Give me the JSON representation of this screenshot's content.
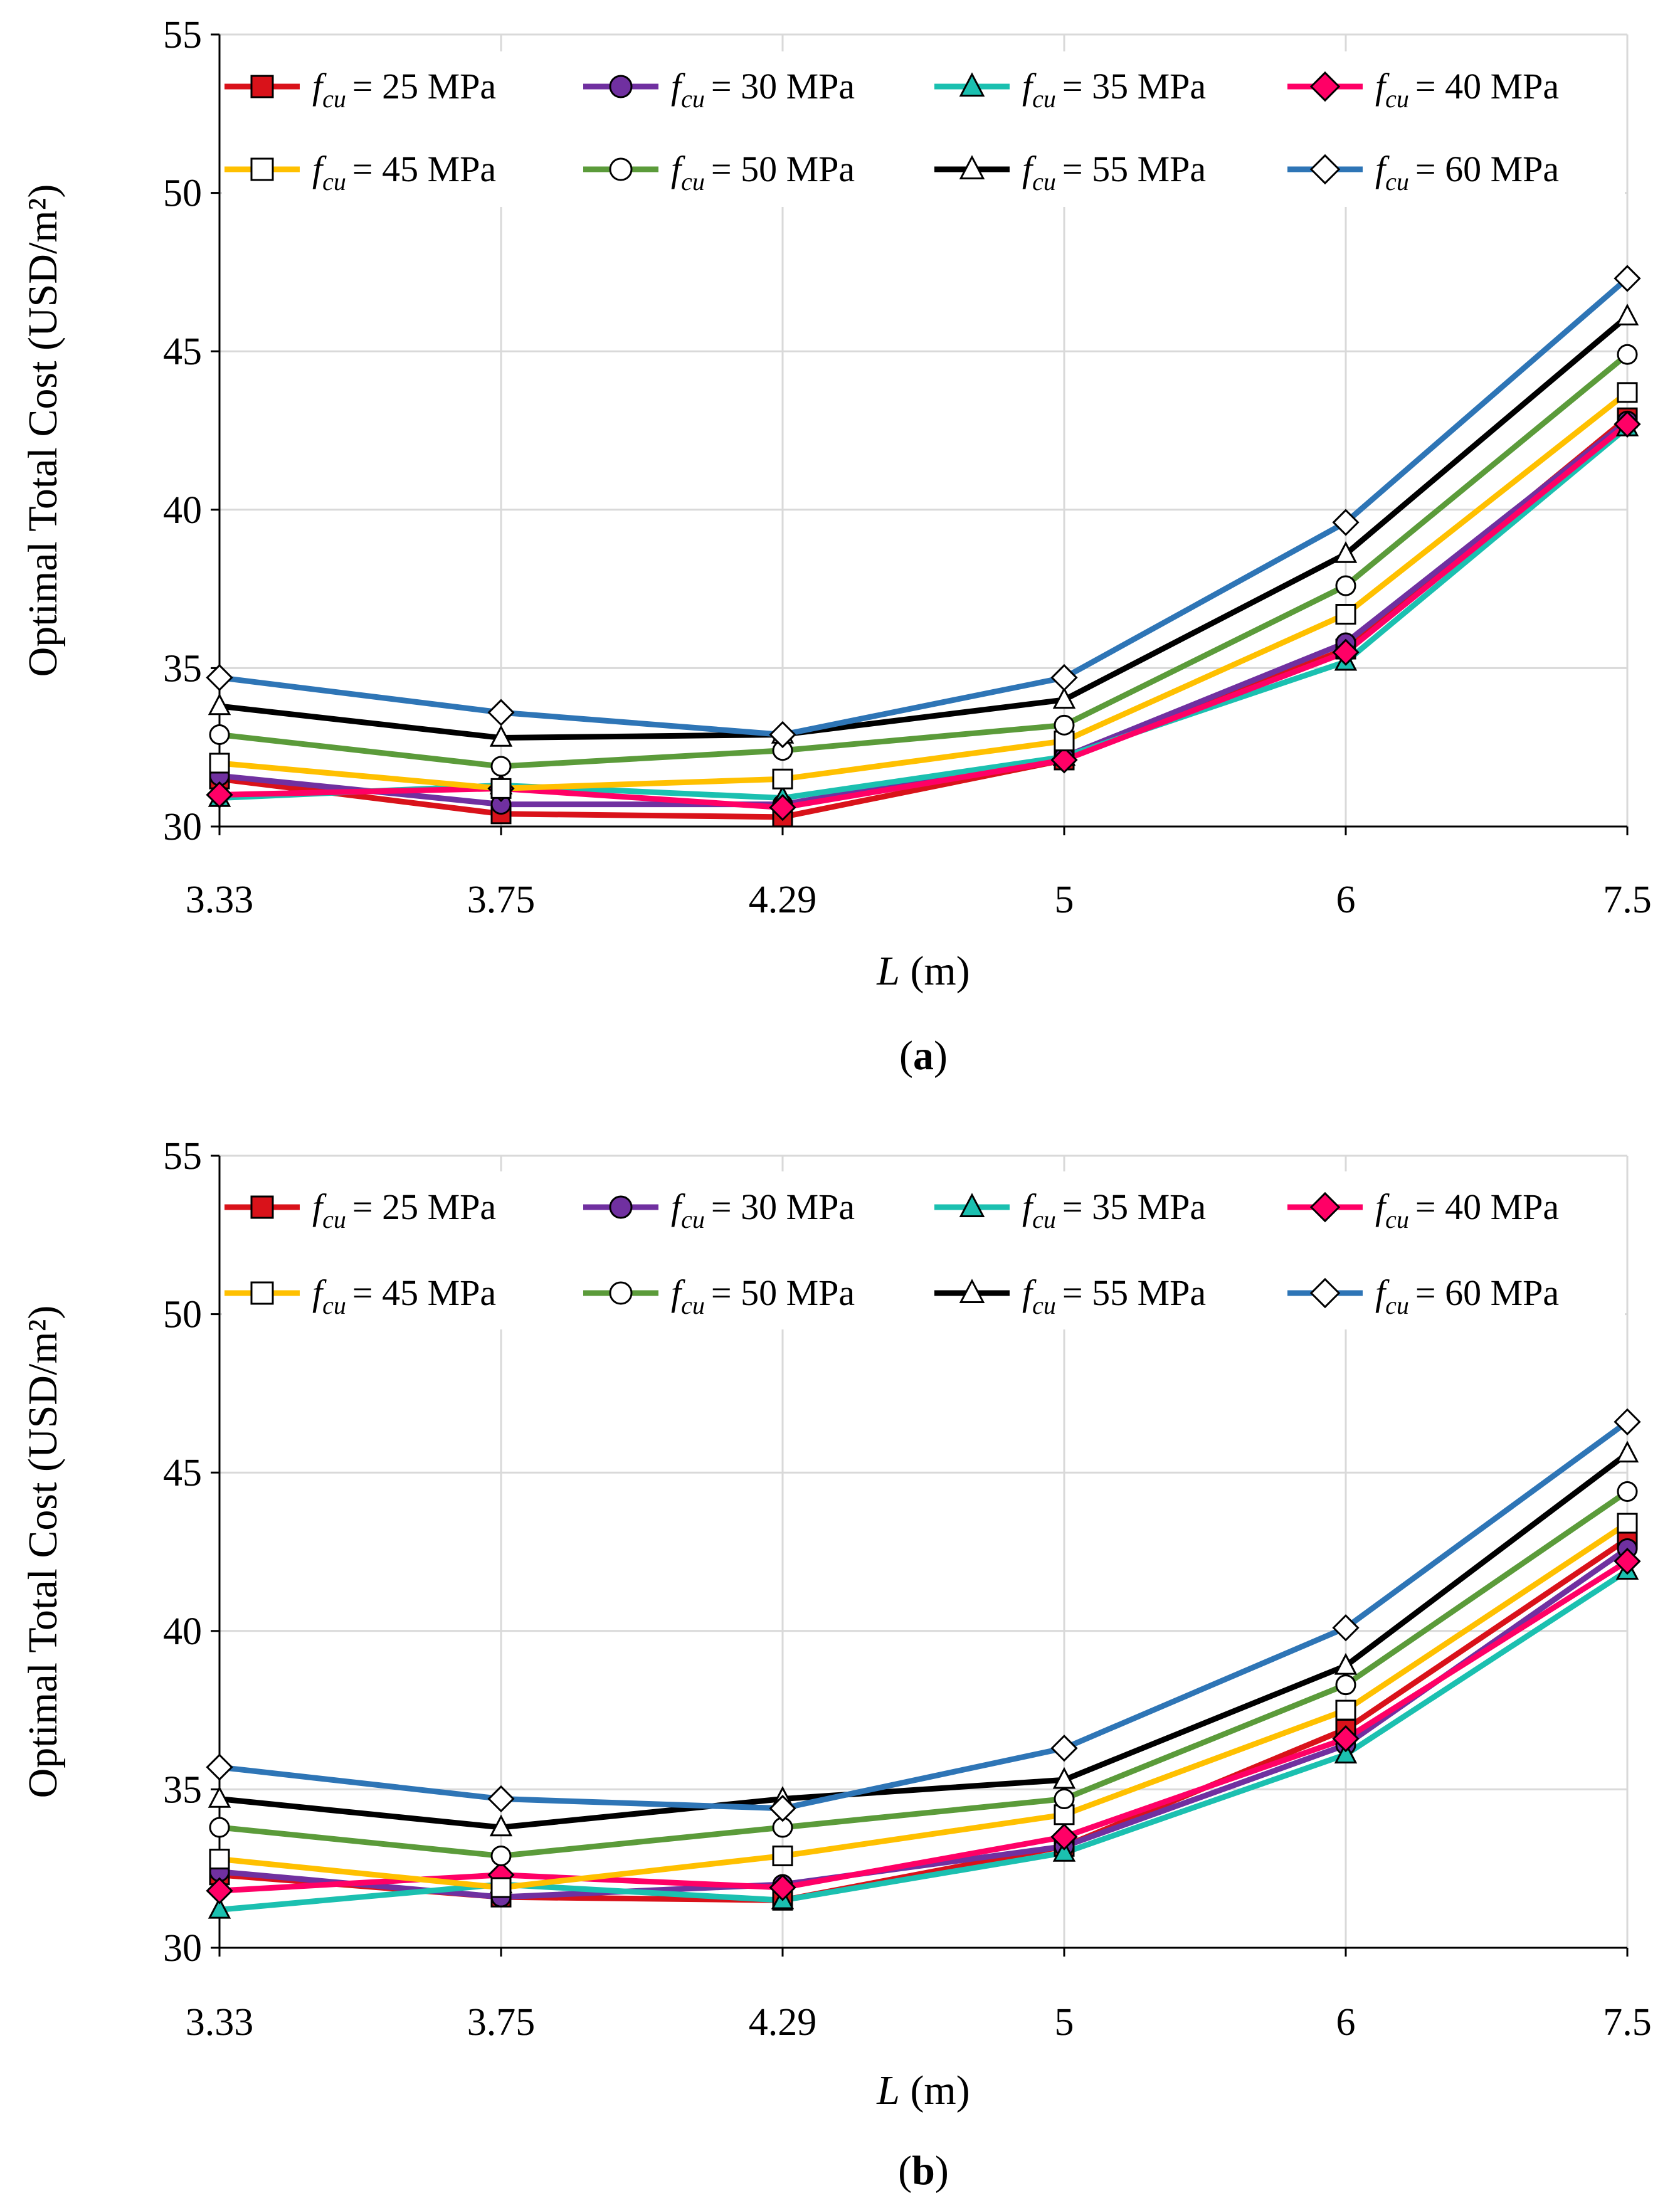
{
  "chart_data": [
    {
      "panel": "(a)",
      "panel_letter": "a",
      "type": "line",
      "title": "",
      "xlabel_var": "L",
      "xlabel_unit": " (m)",
      "ylabel": "Optimal Total Cost (USD/m²)",
      "ylim": [
        30,
        55
      ],
      "yticks": [
        "30",
        "35",
        "40",
        "45",
        "50",
        "55"
      ],
      "categories": [
        "3.33",
        "3.75",
        "4.29",
        "5",
        "6",
        "7.5"
      ],
      "grid": true,
      "legend_position": "top",
      "series": [
        {
          "name": "f_cu = 25 MPa",
          "strength": "= 25 MPa",
          "color": "#d9121a",
          "marker": "square",
          "filled": true,
          "values": [
            31.5,
            30.4,
            30.3,
            32.1,
            35.6,
            42.9
          ]
        },
        {
          "name": "f_cu = 30 MPa",
          "strength": "= 30 MPa",
          "color": "#7030a0",
          "marker": "circle",
          "filled": true,
          "values": [
            31.6,
            30.7,
            30.7,
            32.2,
            35.8,
            42.8
          ]
        },
        {
          "name": "f_cu = 35 MPa",
          "strength": "= 35 MPa",
          "color": "#1bc0b0",
          "marker": "triangle",
          "filled": true,
          "values": [
            30.9,
            31.3,
            30.9,
            32.2,
            35.2,
            42.6
          ]
        },
        {
          "name": "f_cu = 40 MPa",
          "strength": "= 40 MPa",
          "color": "#ff0066",
          "marker": "diamond",
          "filled": true,
          "values": [
            31.0,
            31.2,
            30.6,
            32.1,
            35.5,
            42.7
          ]
        },
        {
          "name": "f_cu = 45 MPa",
          "strength": "= 45 MPa",
          "color": "#ffc000",
          "marker": "square",
          "filled": false,
          "values": [
            32.0,
            31.2,
            31.5,
            32.7,
            36.7,
            43.7
          ]
        },
        {
          "name": "f_cu = 50 MPa",
          "strength": "= 50 MPa",
          "color": "#5b9b3a",
          "marker": "circle",
          "filled": false,
          "values": [
            32.9,
            31.9,
            32.4,
            33.2,
            37.6,
            44.9
          ]
        },
        {
          "name": "f_cu = 55 MPa",
          "strength": "= 55 MPa",
          "color": "#000000",
          "marker": "triangle",
          "filled": false,
          "values": [
            33.8,
            32.8,
            32.9,
            34.0,
            38.6,
            46.1
          ]
        },
        {
          "name": "f_cu = 60 MPa",
          "strength": "= 60 MPa",
          "color": "#2e75b6",
          "marker": "diamond",
          "filled": false,
          "values": [
            34.7,
            33.6,
            32.9,
            34.7,
            39.6,
            47.3
          ]
        }
      ]
    },
    {
      "panel": "(b)",
      "panel_letter": "b",
      "type": "line",
      "title": "",
      "xlabel_var": "L",
      "xlabel_unit": " (m)",
      "ylabel": "Optimal Total Cost (USD/m²)",
      "ylim": [
        30,
        55
      ],
      "yticks": [
        "30",
        "35",
        "40",
        "45",
        "50",
        "55"
      ],
      "categories": [
        "3.33",
        "3.75",
        "4.29",
        "5",
        "6",
        "7.5"
      ],
      "grid": true,
      "legend_position": "top",
      "series": [
        {
          "name": "f_cu = 25 MPa",
          "strength": "= 25 MPa",
          "color": "#d9121a",
          "marker": "square",
          "filled": true,
          "values": [
            32.3,
            31.6,
            31.5,
            33.2,
            36.9,
            42.9
          ]
        },
        {
          "name": "f_cu = 30 MPa",
          "strength": "= 30 MPa",
          "color": "#7030a0",
          "marker": "circle",
          "filled": true,
          "values": [
            32.4,
            31.6,
            32.0,
            33.2,
            36.4,
            42.6
          ]
        },
        {
          "name": "f_cu = 35 MPa",
          "strength": "= 35 MPa",
          "color": "#1bc0b0",
          "marker": "triangle",
          "filled": true,
          "values": [
            31.2,
            32.0,
            31.5,
            33.0,
            36.1,
            41.9
          ]
        },
        {
          "name": "f_cu = 40 MPa",
          "strength": "= 40 MPa",
          "color": "#ff0066",
          "marker": "diamond",
          "filled": true,
          "values": [
            31.8,
            32.3,
            31.9,
            33.5,
            36.6,
            42.2
          ]
        },
        {
          "name": "f_cu = 45 MPa",
          "strength": "= 45 MPa",
          "color": "#ffc000",
          "marker": "square",
          "filled": false,
          "values": [
            32.8,
            31.9,
            32.9,
            34.2,
            37.5,
            43.4
          ]
        },
        {
          "name": "f_cu = 50 MPa",
          "strength": "= 50 MPa",
          "color": "#5b9b3a",
          "marker": "circle",
          "filled": false,
          "values": [
            33.8,
            32.9,
            33.8,
            34.7,
            38.3,
            44.4
          ]
        },
        {
          "name": "f_cu = 55 MPa",
          "strength": "= 55 MPa",
          "color": "#000000",
          "marker": "triangle",
          "filled": false,
          "values": [
            34.7,
            33.8,
            34.7,
            35.3,
            38.9,
            45.6
          ]
        },
        {
          "name": "f_cu = 60 MPa",
          "strength": "= 60 MPa",
          "color": "#2e75b6",
          "marker": "diamond",
          "filled": false,
          "values": [
            35.7,
            34.7,
            34.4,
            36.3,
            40.1,
            46.6
          ]
        }
      ]
    }
  ]
}
